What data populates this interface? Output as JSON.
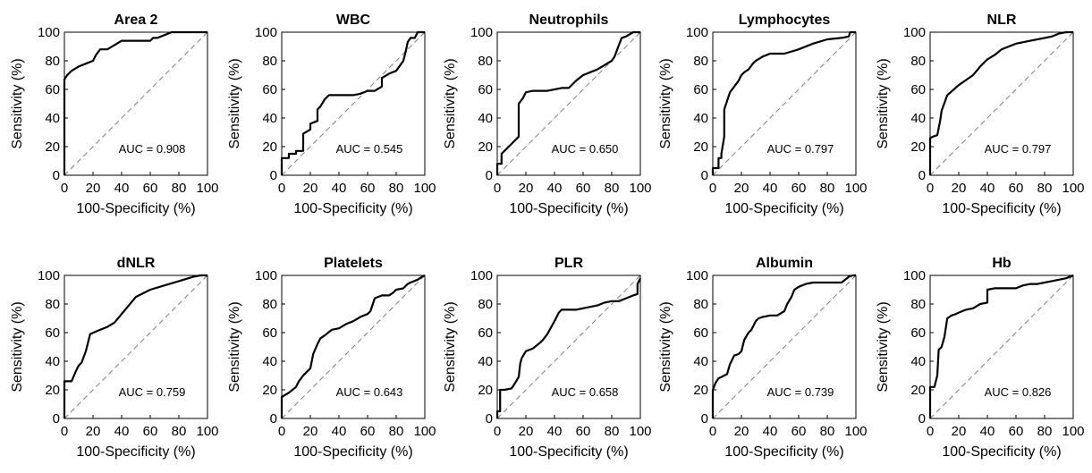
{
  "chart_data": [
    {
      "type": "line",
      "title": "Area 2",
      "xlabel": "100-Specificity (%)",
      "ylabel": "Sensitivity (%)",
      "xlim": [
        0,
        100
      ],
      "ylim": [
        0,
        100
      ],
      "xticks": [
        "0",
        "20",
        "40",
        "60",
        "80",
        "100"
      ],
      "yticks": [
        "0",
        "20",
        "40",
        "60",
        "80",
        "100"
      ],
      "annotation": "AUC = 0.908",
      "series": [
        {
          "x": [
            0,
            0,
            2,
            5,
            10,
            15,
            20,
            22,
            25,
            30,
            35,
            40,
            60,
            62,
            65,
            70,
            75,
            80,
            100
          ],
          "y": [
            0,
            67,
            70,
            73,
            76,
            78,
            80,
            84,
            88,
            88,
            91,
            94,
            94,
            96,
            96,
            98,
            100,
            100,
            100
          ]
        }
      ]
    },
    {
      "type": "line",
      "title": "WBC",
      "xlabel": "100-Specificity (%)",
      "ylabel": "Sensitivity (%)",
      "xlim": [
        0,
        100
      ],
      "ylim": [
        0,
        100
      ],
      "xticks": [
        "0",
        "20",
        "40",
        "60",
        "80",
        "100"
      ],
      "yticks": [
        "0",
        "20",
        "40",
        "60",
        "80",
        "100"
      ],
      "annotation": "AUC = 0.545",
      "series": [
        {
          "x": [
            0,
            0,
            5,
            5,
            10,
            10,
            15,
            15,
            20,
            20,
            25,
            25,
            27,
            30,
            33,
            35,
            40,
            45,
            50,
            55,
            60,
            65,
            70,
            70,
            75,
            80,
            85,
            87,
            88,
            90,
            93,
            95,
            97,
            100
          ],
          "y": [
            0,
            12,
            12,
            15,
            15,
            17,
            17,
            29,
            32,
            36,
            38,
            46,
            48,
            53,
            56,
            56,
            56,
            56,
            56,
            57,
            59,
            59,
            62,
            68,
            71,
            73,
            80,
            88,
            93,
            96,
            96,
            100,
            100,
            100
          ]
        }
      ]
    },
    {
      "type": "line",
      "title": "Neutrophils",
      "xlabel": "100-Specificity (%)",
      "ylabel": "Sensitivity (%)",
      "xlim": [
        0,
        100
      ],
      "ylim": [
        0,
        100
      ],
      "xticks": [
        "0",
        "20",
        "40",
        "60",
        "80",
        "100"
      ],
      "yticks": [
        "0",
        "20",
        "40",
        "60",
        "80",
        "100"
      ],
      "annotation": "AUC = 0.650",
      "series": [
        {
          "x": [
            0,
            0,
            3,
            3,
            12,
            15,
            15,
            18,
            20,
            25,
            30,
            35,
            40,
            45,
            50,
            55,
            60,
            65,
            70,
            75,
            80,
            82,
            85,
            87,
            90,
            95,
            100
          ],
          "y": [
            0,
            8,
            8,
            15,
            24,
            27,
            50,
            54,
            58,
            59,
            59,
            59,
            60,
            61,
            61,
            66,
            70,
            72,
            74,
            77,
            80,
            83,
            91,
            96,
            97,
            100,
            100
          ]
        }
      ]
    },
    {
      "type": "line",
      "title": "Lymphocytes",
      "xlabel": "100-Specificity (%)",
      "ylabel": "Sensitivity (%)",
      "xlim": [
        0,
        100
      ],
      "ylim": [
        0,
        100
      ],
      "xticks": [
        "0",
        "20",
        "40",
        "60",
        "80",
        "100"
      ],
      "yticks": [
        "0",
        "20",
        "40",
        "60",
        "80",
        "100"
      ],
      "annotation": "AUC = 0.797",
      "series": [
        {
          "x": [
            0,
            0,
            4,
            4,
            6,
            6,
            8,
            8,
            10,
            12,
            15,
            18,
            20,
            22,
            25,
            28,
            30,
            35,
            40,
            50,
            60,
            70,
            80,
            90,
            95,
            96,
            100
          ],
          "y": [
            0,
            5,
            5,
            12,
            12,
            15,
            27,
            46,
            52,
            58,
            62,
            66,
            70,
            72,
            74,
            78,
            80,
            83,
            85,
            85,
            88,
            92,
            95,
            96,
            97,
            100,
            100
          ]
        }
      ]
    },
    {
      "type": "line",
      "title": "NLR",
      "xlabel": "100-Specificity (%)",
      "ylabel": "Sensitivity (%)",
      "xlim": [
        0,
        100
      ],
      "ylim": [
        0,
        100
      ],
      "xticks": [
        "0",
        "20",
        "40",
        "60",
        "80",
        "100"
      ],
      "yticks": [
        "0",
        "20",
        "40",
        "60",
        "80",
        "100"
      ],
      "annotation": "AUC = 0.797",
      "series": [
        {
          "x": [
            0,
            0,
            2,
            5,
            7,
            8,
            12,
            20,
            30,
            35,
            40,
            45,
            50,
            55,
            60,
            70,
            75,
            80,
            85,
            90,
            95,
            100
          ],
          "y": [
            0,
            26,
            27,
            28,
            38,
            45,
            56,
            63,
            70,
            76,
            81,
            84,
            88,
            90,
            92,
            94,
            95,
            96,
            97,
            99,
            100,
            100
          ]
        }
      ]
    },
    {
      "type": "line",
      "title": "dNLR",
      "xlabel": "100-Specificity (%)",
      "ylabel": "Sensitivity (%)",
      "xlim": [
        0,
        100
      ],
      "ylim": [
        0,
        100
      ],
      "xticks": [
        "0",
        "20",
        "40",
        "60",
        "80",
        "100"
      ],
      "yticks": [
        "0",
        "20",
        "40",
        "60",
        "80",
        "100"
      ],
      "annotation": "AUC = 0.759",
      "series": [
        {
          "x": [
            0,
            0,
            5,
            8,
            10,
            12,
            15,
            18,
            25,
            30,
            35,
            40,
            45,
            50,
            60,
            70,
            80,
            90,
            95,
            100
          ],
          "y": [
            0,
            26,
            26,
            33,
            37,
            39,
            47,
            59,
            62,
            64,
            67,
            73,
            79,
            85,
            90,
            93,
            96,
            99,
            100,
            100
          ]
        }
      ]
    },
    {
      "type": "line",
      "title": "Platelets",
      "xlabel": "100-Specificity (%)",
      "ylabel": "Sensitivity (%)",
      "xlim": [
        0,
        100
      ],
      "ylim": [
        0,
        100
      ],
      "xticks": [
        "0",
        "20",
        "40",
        "60",
        "80",
        "100"
      ],
      "yticks": [
        "0",
        "20",
        "40",
        "60",
        "80",
        "100"
      ],
      "annotation": "AUC = 0.643",
      "series": [
        {
          "x": [
            0,
            0,
            5,
            10,
            12,
            15,
            17,
            20,
            22,
            25,
            27,
            30,
            35,
            40,
            45,
            50,
            55,
            60,
            62,
            65,
            70,
            75,
            78,
            80,
            85,
            88,
            90,
            95,
            98,
            100
          ],
          "y": [
            0,
            15,
            18,
            22,
            26,
            30,
            32,
            35,
            45,
            52,
            56,
            58,
            62,
            63,
            66,
            68,
            71,
            73,
            75,
            84,
            86,
            86,
            88,
            90,
            91,
            94,
            95,
            97,
            99,
            100
          ]
        }
      ]
    },
    {
      "type": "line",
      "title": "PLR",
      "xlabel": "100-Specificity (%)",
      "ylabel": "Sensitivity (%)",
      "xlim": [
        0,
        100
      ],
      "ylim": [
        0,
        100
      ],
      "xticks": [
        "0",
        "20",
        "40",
        "60",
        "80",
        "100"
      ],
      "yticks": [
        "0",
        "20",
        "40",
        "60",
        "80",
        "100"
      ],
      "annotation": "AUC = 0.658",
      "series": [
        {
          "x": [
            0,
            0,
            2,
            2,
            5,
            10,
            12,
            15,
            16,
            17,
            20,
            25,
            30,
            32,
            35,
            40,
            43,
            45,
            50,
            55,
            60,
            65,
            70,
            75,
            80,
            85,
            90,
            95,
            98,
            98,
            100
          ],
          "y": [
            0,
            5,
            5,
            20,
            20,
            21,
            24,
            29,
            38,
            42,
            47,
            49,
            53,
            55,
            59,
            68,
            74,
            76,
            76,
            76,
            77,
            78,
            79,
            81,
            82,
            82,
            84,
            86,
            87,
            94,
            98
          ]
        }
      ]
    },
    {
      "type": "line",
      "title": "Albumin",
      "xlabel": "100-Specificity (%)",
      "ylabel": "Sensitivity (%)",
      "xlim": [
        0,
        100
      ],
      "ylim": [
        0,
        100
      ],
      "xticks": [
        "0",
        "20",
        "40",
        "60",
        "80",
        "100"
      ],
      "yticks": [
        "0",
        "20",
        "40",
        "60",
        "80",
        "100"
      ],
      "annotation": "AUC = 0.739",
      "series": [
        {
          "x": [
            0,
            0,
            2,
            4,
            6,
            8,
            10,
            12,
            15,
            18,
            20,
            22,
            25,
            27,
            30,
            32,
            35,
            40,
            45,
            50,
            52,
            55,
            57,
            60,
            65,
            70,
            75,
            80,
            85,
            90,
            95,
            98,
            100
          ],
          "y": [
            0,
            20,
            25,
            28,
            29,
            30,
            31,
            38,
            44,
            45,
            47,
            55,
            60,
            62,
            68,
            70,
            71,
            72,
            72,
            75,
            80,
            85,
            90,
            92,
            94,
            95,
            95,
            95,
            95,
            95,
            99,
            100,
            100
          ]
        }
      ]
    },
    {
      "type": "line",
      "title": "Hb",
      "xlabel": "100-Specificity (%)",
      "ylabel": "Sensitivity (%)",
      "xlim": [
        0,
        100
      ],
      "ylim": [
        0,
        100
      ],
      "xticks": [
        "0",
        "20",
        "40",
        "60",
        "80",
        "100"
      ],
      "yticks": [
        "0",
        "20",
        "40",
        "60",
        "80",
        "100"
      ],
      "annotation": "AUC = 0.826",
      "series": [
        {
          "x": [
            0,
            0,
            3,
            5,
            6,
            8,
            10,
            12,
            15,
            18,
            20,
            25,
            30,
            35,
            40,
            40,
            45,
            50,
            55,
            60,
            65,
            70,
            75,
            80,
            85,
            90,
            95,
            100
          ],
          "y": [
            0,
            22,
            22,
            30,
            48,
            50,
            57,
            70,
            72,
            73,
            74,
            76,
            77,
            80,
            81,
            90,
            91,
            91,
            91,
            91,
            93,
            94,
            94,
            95,
            96,
            97,
            98,
            100
          ]
        }
      ]
    }
  ]
}
